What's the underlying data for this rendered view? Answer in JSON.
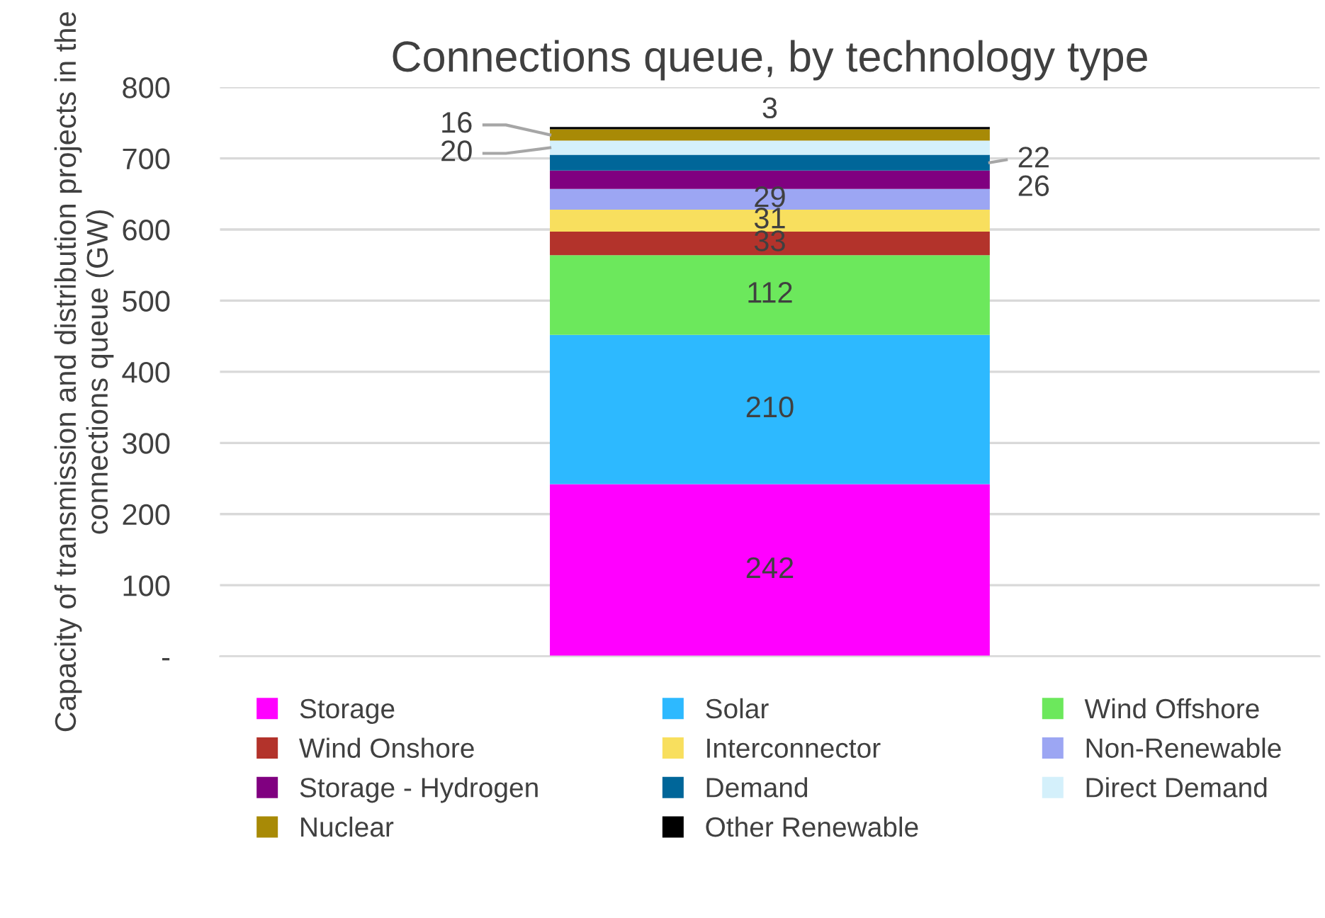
{
  "chart_data": {
    "type": "bar",
    "stacked": true,
    "title": "Connections queue, by technology type",
    "ylabel": "Capacity of transmission and distribution projects in the connections queue (GW)",
    "categories": [
      null
    ],
    "ylim": [
      0,
      800
    ],
    "yticks": [
      {
        "value": 0,
        "label": "-"
      },
      100,
      200,
      300,
      400,
      500,
      600,
      700,
      800
    ],
    "grid": "y",
    "legend": "bottom",
    "data_labels": true,
    "series": [
      {
        "name": "Storage",
        "color": "#ff00ff",
        "values": [
          242
        ]
      },
      {
        "name": "Solar",
        "color": "#2db9ff",
        "values": [
          210
        ]
      },
      {
        "name": "Wind Offshore",
        "color": "#6ce85c",
        "values": [
          112
        ]
      },
      {
        "name": "Wind Onshore",
        "color": "#b3332b",
        "values": [
          33
        ]
      },
      {
        "name": "Interconnector",
        "color": "#f8df5e",
        "values": [
          31
        ]
      },
      {
        "name": "Non-Renewable",
        "color": "#9ca6f3",
        "values": [
          29
        ]
      },
      {
        "name": "Storage - Hydrogen",
        "color": "#800080",
        "values": [
          26
        ]
      },
      {
        "name": "Demand",
        "color": "#006699",
        "values": [
          22
        ]
      },
      {
        "name": "Direct Demand",
        "color": "#d4f0fb",
        "values": [
          20
        ]
      },
      {
        "name": "Nuclear",
        "color": "#a88a06",
        "values": [
          16
        ]
      },
      {
        "name": "Other Renewable",
        "color": "#000000",
        "values": [
          3
        ]
      }
    ]
  }
}
